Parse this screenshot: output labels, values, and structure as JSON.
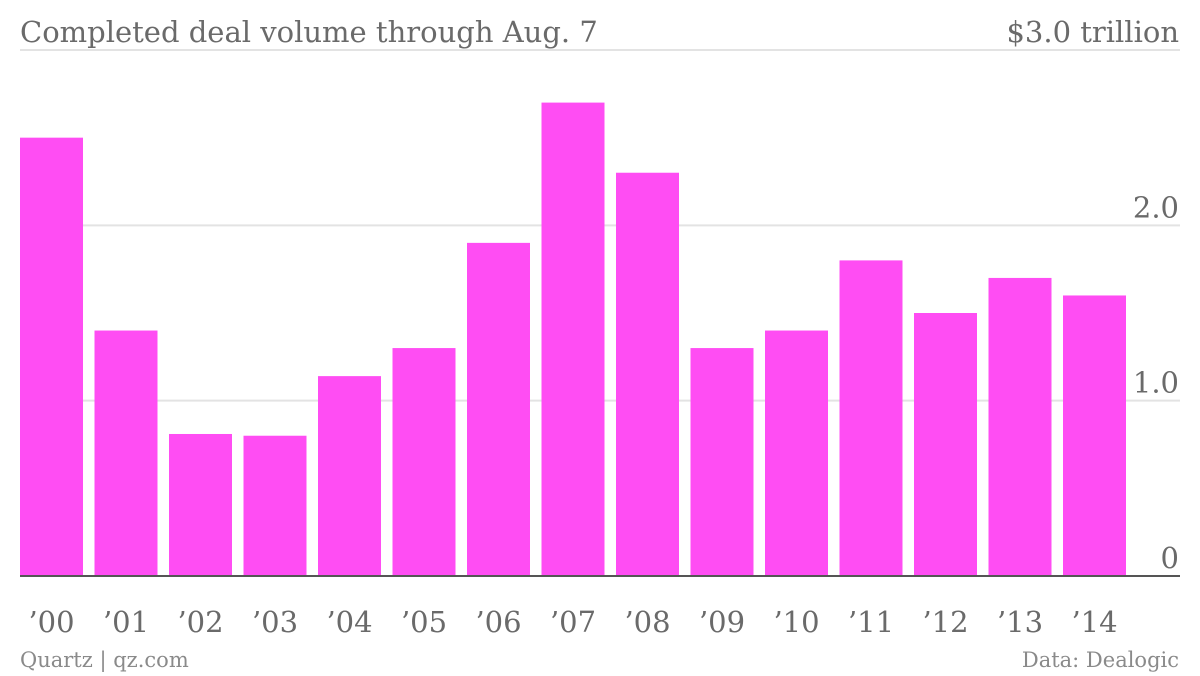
{
  "chart_data": {
    "type": "bar",
    "title": "Completed deal volume through Aug. 7",
    "unit_label": "$3.0 trillion",
    "categories": [
      "’00",
      "’01",
      "’02",
      "’03",
      "’04",
      "’05",
      "’06",
      "’07",
      "’08",
      "’09",
      "’10",
      "’11",
      "’12",
      "’13",
      "’14"
    ],
    "values": [
      2.5,
      1.4,
      0.81,
      0.8,
      1.14,
      1.3,
      1.9,
      2.7,
      2.3,
      1.3,
      1.4,
      1.8,
      1.5,
      1.7,
      1.6
    ],
    "ylim": [
      0,
      3.0
    ],
    "yticks": [
      0,
      1.0,
      2.0
    ],
    "ytick_labels": [
      "0",
      "1.0",
      "2.0"
    ],
    "grid": true,
    "bar_color": "#ff4df3",
    "grid_color": "#e3e3e3",
    "axis_color": "#555555",
    "text_color": "#6a6a6a"
  },
  "footer": {
    "source_left": "Quartz | qz.com",
    "source_right": "Data: Dealogic"
  }
}
